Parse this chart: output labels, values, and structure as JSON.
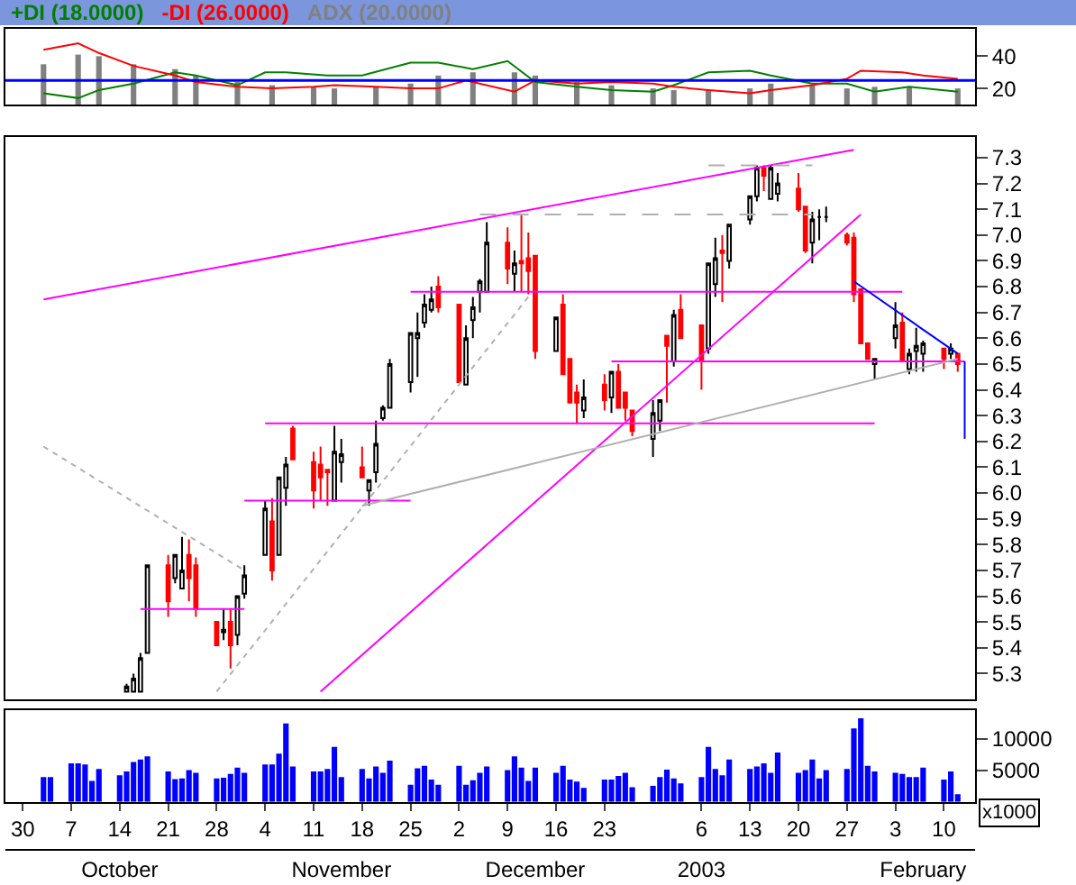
{
  "chart_data": [
    {
      "type": "line",
      "xlim": [
        "2002-09-27T12:00",
        "2003-02-14T12:00"
      ],
      "ylim": [
        10,
        57
      ],
      "yticks": [
        20,
        40
      ],
      "tick_labels": "y",
      "ref_lines": [
        {
          "axis": "y",
          "value": 25,
          "color": "#0000ff"
        }
      ],
      "series": [
        {
          "name": "+DI (18.0000)",
          "type": "line",
          "color": "#008000",
          "x": [
            "2002-10-03",
            "2002-10-08",
            "2002-10-11",
            "2002-10-16",
            "2002-10-22",
            "2002-10-25",
            "2002-10-31",
            "2002-11-04",
            "2002-11-07",
            "2002-11-13",
            "2002-11-18",
            "2002-11-25",
            "2002-11-29",
            "2002-12-04",
            "2002-12-09",
            "2002-12-13",
            "2002-12-19",
            "2002-12-24",
            "2002-12-30",
            "2003-01-02",
            "2003-01-07",
            "2003-01-13",
            "2003-01-16",
            "2003-01-22",
            "2003-01-27",
            "2003-01-31",
            "2003-02-05",
            "2003-02-12"
          ],
          "values": [
            17,
            14,
            19,
            23,
            30,
            28,
            22,
            30,
            30,
            28,
            28,
            36,
            36,
            32,
            37,
            24,
            21,
            19,
            18,
            22,
            30,
            31,
            28,
            23,
            23,
            18,
            21,
            18
          ]
        },
        {
          "name": "-DI (26.0000)",
          "type": "line",
          "color": "#ff0000",
          "x": [
            "2002-10-03",
            "2002-10-08",
            "2002-10-11",
            "2002-10-16",
            "2002-10-22",
            "2002-10-25",
            "2002-10-31",
            "2002-11-05",
            "2002-11-11",
            "2002-11-14",
            "2002-11-20",
            "2002-11-25",
            "2002-11-29",
            "2002-12-03",
            "2002-12-10",
            "2002-12-13",
            "2002-12-19",
            "2002-12-24",
            "2002-12-30",
            "2003-01-02",
            "2003-01-07",
            "2003-01-13",
            "2003-01-16",
            "2003-01-22",
            "2003-01-27",
            "2003-01-29",
            "2003-02-04",
            "2003-02-07",
            "2003-02-12"
          ],
          "values": [
            44,
            48,
            42,
            34,
            28,
            24,
            21,
            20,
            21,
            22,
            21,
            20,
            20,
            25,
            18,
            25,
            23,
            24,
            23,
            21,
            19,
            17,
            19,
            22,
            26,
            31,
            30,
            28,
            26
          ]
        },
        {
          "name": "ADX (20.0000)",
          "type": "bar",
          "color": "#808080",
          "x": [
            "2002-10-03",
            "2002-10-08",
            "2002-10-11",
            "2002-10-16",
            "2002-10-22",
            "2002-10-25",
            "2002-10-31",
            "2002-11-05",
            "2002-11-11",
            "2002-11-14",
            "2002-11-20",
            "2002-11-25",
            "2002-11-29",
            "2002-12-04",
            "2002-12-10",
            "2002-12-13",
            "2002-12-19",
            "2002-12-24",
            "2002-12-30",
            "2003-01-02",
            "2003-01-07",
            "2003-01-13",
            "2003-01-16",
            "2003-01-22",
            "2003-01-27",
            "2003-01-31",
            "2003-02-05",
            "2003-02-12"
          ],
          "values": [
            35,
            41,
            40,
            35,
            32,
            28,
            24,
            22,
            21,
            20,
            21,
            23,
            28,
            30,
            30,
            28,
            24,
            22,
            20,
            19,
            19,
            20,
            23,
            22,
            20,
            21,
            21,
            20
          ]
        }
      ]
    },
    {
      "type": "candlestick",
      "xlim": [
        "2002-09-27T12:00",
        "2003-02-14T12:00"
      ],
      "ylim": [
        5.2,
        7.38
      ],
      "tick_labels": "y",
      "yticks": [
        5.3,
        5.4,
        5.5,
        5.6,
        5.7,
        5.8,
        5.9,
        {
          "value": 6,
          "label": "6.0"
        },
        6.1,
        6.2,
        6.3,
        6.4,
        6.5,
        6.6,
        6.7,
        6.8,
        6.9,
        {
          "value": 7,
          "label": "7.0"
        },
        7.1,
        7.2,
        7.3
      ],
      "x": [
        "2002-10-15",
        "2002-10-16",
        "2002-10-17",
        "2002-10-18",
        "2002-10-21",
        "2002-10-22",
        "2002-10-23",
        "2002-10-24",
        "2002-10-25",
        "2002-10-28",
        "2002-10-29",
        "2002-10-30",
        "2002-10-31",
        "2002-11-01",
        "2002-11-04",
        "2002-11-05",
        "2002-11-06",
        "2002-11-07",
        "2002-11-08",
        "2002-11-11",
        "2002-11-12",
        "2002-11-13",
        "2002-11-14",
        "2002-11-15",
        "2002-11-18",
        "2002-11-19",
        "2002-11-20",
        "2002-11-21",
        "2002-11-22",
        "2002-11-25",
        "2002-11-26",
        "2002-11-27",
        "2002-11-28",
        "2002-11-29",
        "2002-12-02",
        "2002-12-03",
        "2002-12-04",
        "2002-12-05",
        "2002-12-06",
        "2002-12-09",
        "2002-12-10",
        "2002-12-11",
        "2002-12-12",
        "2002-12-13",
        "2002-12-16",
        "2002-12-17",
        "2002-12-18",
        "2002-12-19",
        "2002-12-20",
        "2002-12-23",
        "2002-12-24",
        "2002-12-25",
        "2002-12-26",
        "2002-12-27",
        "2002-12-30",
        "2002-12-31",
        "2003-01-01",
        "2003-01-02",
        "2003-01-03",
        "2003-01-06",
        "2003-01-07",
        "2003-01-08",
        "2003-01-09",
        "2003-01-10",
        "2003-01-13",
        "2003-01-14",
        "2003-01-15",
        "2003-01-16",
        "2003-01-17",
        "2003-01-20",
        "2003-01-21",
        "2003-01-22",
        "2003-01-23",
        "2003-01-24",
        "2003-01-27",
        "2003-01-28",
        "2003-01-29",
        "2003-01-30",
        "2003-01-31",
        "2003-02-03",
        "2003-02-04",
        "2003-02-05",
        "2003-02-06",
        "2003-02-07",
        "2003-02-10",
        "2003-02-11",
        "2003-02-12"
      ],
      "ohlc": [
        [
          5.23,
          5.26,
          5.23,
          5.25
        ],
        [
          5.23,
          5.3,
          5.23,
          5.28
        ],
        [
          5.23,
          5.38,
          5.23,
          5.36
        ],
        [
          5.38,
          5.72,
          5.38,
          5.72
        ],
        [
          5.72,
          5.76,
          5.52,
          5.58
        ],
        [
          5.67,
          5.76,
          5.65,
          5.76
        ],
        [
          5.63,
          5.83,
          5.63,
          5.7
        ],
        [
          5.76,
          5.82,
          5.58,
          5.67
        ],
        [
          5.72,
          5.75,
          5.52,
          5.55
        ],
        [
          5.5,
          5.5,
          5.41,
          5.41
        ],
        [
          5.46,
          5.55,
          5.43,
          5.47
        ],
        [
          5.5,
          5.55,
          5.32,
          5.41
        ],
        [
          5.45,
          5.6,
          5.41,
          5.6
        ],
        [
          5.61,
          5.72,
          5.59,
          5.68
        ],
        [
          5.76,
          5.97,
          5.76,
          5.94
        ],
        [
          5.89,
          5.98,
          5.66,
          5.7
        ],
        [
          5.76,
          6.06,
          5.76,
          6.06
        ],
        [
          6.02,
          6.14,
          5.95,
          6.11
        ],
        [
          6.25,
          6.26,
          6.13,
          6.13
        ],
        [
          6.12,
          6.16,
          5.94,
          6.01
        ],
        [
          6.11,
          6.18,
          5.97,
          6.06
        ],
        [
          6.09,
          6.09,
          5.95,
          6.08
        ],
        [
          5.97,
          6.26,
          5.97,
          6.16
        ],
        [
          6.12,
          6.21,
          6.04,
          6.15
        ],
        [
          6.1,
          6.18,
          6.06,
          6.06
        ],
        [
          6.01,
          6.05,
          5.95,
          6.05
        ],
        [
          6.08,
          6.28,
          6.04,
          6.19
        ],
        [
          6.29,
          6.34,
          6.28,
          6.33
        ],
        [
          6.33,
          6.52,
          6.33,
          6.5
        ],
        [
          6.43,
          6.62,
          6.39,
          6.62
        ],
        [
          6.6,
          6.7,
          6.45,
          6.62
        ],
        [
          6.66,
          6.77,
          6.64,
          6.73
        ],
        [
          6.71,
          6.8,
          6.7,
          6.75
        ],
        [
          6.8,
          6.84,
          6.7,
          6.72
        ],
        [
          6.73,
          6.73,
          6.43,
          6.43
        ],
        [
          6.42,
          6.65,
          6.42,
          6.6
        ],
        [
          6.67,
          6.76,
          6.6,
          6.72
        ],
        [
          6.78,
          6.83,
          6.7,
          6.82
        ],
        [
          6.78,
          7.05,
          6.78,
          6.97
        ],
        [
          6.97,
          7.03,
          6.81,
          6.87
        ],
        [
          6.85,
          6.94,
          6.78,
          6.89
        ],
        [
          6.9,
          7.08,
          6.78,
          6.89
        ],
        [
          6.91,
          7.01,
          6.77,
          6.86
        ],
        [
          6.92,
          6.92,
          6.52,
          6.55
        ],
        [
          6.55,
          6.68,
          6.55,
          6.68
        ],
        [
          6.73,
          6.77,
          6.46,
          6.46
        ],
        [
          6.52,
          6.52,
          6.35,
          6.35
        ],
        [
          6.39,
          6.42,
          6.27,
          6.35
        ],
        [
          6.32,
          6.44,
          6.29,
          6.37
        ],
        [
          6.42,
          6.46,
          6.32,
          6.36
        ],
        [
          6.37,
          6.47,
          6.31,
          6.47
        ],
        [
          6.47,
          6.5,
          6.33,
          6.33
        ],
        [
          6.39,
          6.39,
          6.28,
          6.33
        ],
        [
          6.32,
          6.32,
          6.22,
          6.24
        ],
        [
          6.21,
          6.36,
          6.14,
          6.31
        ],
        [
          6.28,
          6.36,
          6.24,
          6.36
        ],
        [
          6.61,
          6.61,
          6.35,
          6.57
        ],
        [
          6.51,
          6.71,
          6.49,
          6.69
        ],
        [
          6.71,
          6.77,
          6.6,
          6.6
        ],
        [
          6.65,
          6.65,
          6.4,
          6.51
        ],
        [
          6.56,
          6.89,
          6.54,
          6.89
        ],
        [
          6.81,
          6.99,
          6.76,
          6.91
        ],
        [
          6.94,
          7.0,
          6.74,
          6.93
        ],
        [
          6.9,
          7.04,
          6.87,
          7.04
        ],
        [
          7.06,
          7.15,
          7.04,
          7.15
        ],
        [
          7.15,
          7.27,
          7.13,
          7.26
        ],
        [
          7.26,
          7.27,
          7.17,
          7.23
        ],
        [
          7.14,
          7.27,
          7.14,
          7.26
        ],
        [
          7.16,
          7.24,
          7.13,
          7.2
        ],
        [
          7.18,
          7.24,
          7.09,
          7.1
        ],
        [
          7.11,
          7.11,
          6.93,
          6.94
        ],
        [
          6.97,
          7.09,
          6.89,
          7.06
        ],
        [
          7.07,
          7.1,
          6.98,
          7.07
        ],
        [
          7.07,
          7.11,
          7.05,
          7.07
        ],
        [
          7.0,
          7.01,
          6.96,
          6.97
        ],
        [
          6.99,
          7.01,
          6.74,
          6.77
        ],
        [
          6.79,
          6.79,
          6.58,
          6.58
        ],
        [
          6.58,
          6.58,
          6.52,
          6.52
        ],
        [
          6.5,
          6.52,
          6.44,
          6.52
        ],
        [
          6.6,
          6.74,
          6.56,
          6.65
        ],
        [
          6.66,
          6.7,
          6.51,
          6.51
        ],
        [
          6.48,
          6.56,
          6.46,
          6.54
        ],
        [
          6.55,
          6.64,
          6.47,
          6.57
        ],
        [
          6.54,
          6.59,
          6.47,
          6.58
        ],
        [
          6.56,
          6.56,
          6.48,
          6.52
        ],
        [
          6.54,
          6.58,
          6.52,
          6.56
        ],
        [
          6.54,
          6.54,
          6.47,
          6.5
        ]
      ],
      "series": [
        {
          "type": "line",
          "color": "#ff00ff",
          "x": [
            "2002-10-03",
            "2003-01-28"
          ],
          "values": [
            6.75,
            7.33
          ]
        },
        {
          "type": "line",
          "color": "#ff00ff",
          "x": [
            "2002-11-12",
            "2003-01-29"
          ],
          "values": [
            5.23,
            7.08
          ]
        },
        {
          "type": "line",
          "color": "#ff00ff",
          "x": [
            "2002-10-17",
            "2002-11-01"
          ],
          "values": [
            5.55,
            5.55
          ]
        },
        {
          "type": "line",
          "color": "#ff00ff",
          "x": [
            "2002-11-01",
            "2002-11-25"
          ],
          "values": [
            5.97,
            5.97
          ]
        },
        {
          "type": "line",
          "color": "#ff00ff",
          "x": [
            "2002-11-04",
            "2003-01-31"
          ],
          "values": [
            6.27,
            6.27
          ]
        },
        {
          "type": "line",
          "color": "#ff00ff",
          "x": [
            "2002-11-25",
            "2003-02-04"
          ],
          "values": [
            6.78,
            6.78
          ]
        },
        {
          "type": "line",
          "color": "#ff00ff",
          "x": [
            "2002-12-24",
            "2003-02-13"
          ],
          "values": [
            6.51,
            6.51
          ]
        },
        {
          "type": "line",
          "color": "#b0b0b0",
          "line_style": "dashed",
          "x": [
            "2002-12-05",
            "2003-01-22"
          ],
          "values": [
            7.08,
            7.08
          ]
        },
        {
          "type": "line",
          "color": "#b0b0b0",
          "line_style": "dashed",
          "x": [
            "2003-01-07",
            "2003-01-22"
          ],
          "values": [
            7.27,
            7.27
          ]
        },
        {
          "type": "line",
          "color": "#b0b0b0",
          "line_style": "dotted",
          "x": [
            "2002-10-03",
            "2002-11-01"
          ],
          "values": [
            6.18,
            5.7
          ]
        },
        {
          "type": "line",
          "color": "#b0b0b0",
          "line_style": "dotted",
          "x": [
            "2002-10-28",
            "2002-12-12"
          ],
          "values": [
            5.23,
            6.76
          ]
        },
        {
          "type": "line",
          "color": "#b0b0b0",
          "x": [
            "2002-11-18",
            "2003-02-12"
          ],
          "values": [
            5.95,
            6.52
          ]
        },
        {
          "type": "line",
          "color": "#0000ff",
          "x": [
            "2003-01-28",
            "2003-02-12"
          ],
          "values": [
            6.82,
            6.54
          ]
        },
        {
          "type": "line",
          "color": "#0000ff",
          "x": [
            "2003-02-13",
            "2003-02-13"
          ],
          "values": [
            6.51,
            6.21
          ]
        }
      ]
    },
    {
      "type": "bar",
      "color": "#0000ff",
      "xlim": [
        "2002-09-27T12:00",
        "2003-02-14T12:00"
      ],
      "ylim": [
        0,
        14500
      ],
      "yticks": [
        5000,
        10000
      ],
      "annotations": [
        "x1000"
      ],
      "xticks": [
        {
          "value": "2002-09-30",
          "label": "30"
        },
        {
          "value": "2002-10-07",
          "label": "7"
        },
        {
          "value": "2002-10-14",
          "label": "14"
        },
        {
          "value": "2002-10-21",
          "label": "21"
        },
        {
          "value": "2002-10-28",
          "label": "28"
        },
        {
          "value": "2002-11-04",
          "label": "4"
        },
        {
          "value": "2002-11-11",
          "label": "11"
        },
        {
          "value": "2002-11-18",
          "label": "18"
        },
        {
          "value": "2002-11-25",
          "label": "25"
        },
        {
          "value": "2002-12-02",
          "label": "2"
        },
        {
          "value": "2002-12-09",
          "label": "9"
        },
        {
          "value": "2002-12-16",
          "label": "16"
        },
        {
          "value": "2002-12-23",
          "label": "23"
        },
        {
          "value": "2003-01-06",
          "label": "6"
        },
        {
          "value": "2003-01-13",
          "label": "13"
        },
        {
          "value": "2003-01-20",
          "label": "20"
        },
        {
          "value": "2003-01-27",
          "label": "27"
        },
        {
          "value": "2003-02-03",
          "label": "3"
        },
        {
          "value": "2003-02-10",
          "label": "10"
        }
      ],
      "x2lim": [
        "2002-09-27T12:00",
        "2003-02-14T12:00"
      ],
      "x2ticks": [
        {
          "value": "2002-10-14",
          "label": "October"
        },
        {
          "value": "2002-11-15",
          "label": "November"
        },
        {
          "value": "2002-12-13",
          "label": "December"
        },
        {
          "value": "2003-01-06",
          "label": "2003"
        },
        {
          "value": "2003-02-07",
          "label": "February"
        }
      ],
      "x": [
        "2002-10-03",
        "2002-10-04",
        "2002-10-07",
        "2002-10-08",
        "2002-10-09",
        "2002-10-10",
        "2002-10-11",
        "2002-10-14",
        "2002-10-15",
        "2002-10-16",
        "2002-10-17",
        "2002-10-18",
        "2002-10-21",
        "2002-10-22",
        "2002-10-23",
        "2002-10-24",
        "2002-10-25",
        "2002-10-28",
        "2002-10-29",
        "2002-10-30",
        "2002-10-31",
        "2002-11-01",
        "2002-11-04",
        "2002-11-05",
        "2002-11-06",
        "2002-11-07",
        "2002-11-08",
        "2002-11-11",
        "2002-11-12",
        "2002-11-13",
        "2002-11-14",
        "2002-11-15",
        "2002-11-18",
        "2002-11-19",
        "2002-11-20",
        "2002-11-21",
        "2002-11-22",
        "2002-11-25",
        "2002-11-26",
        "2002-11-27",
        "2002-11-28",
        "2002-11-29",
        "2002-12-02",
        "2002-12-03",
        "2002-12-04",
        "2002-12-05",
        "2002-12-06",
        "2002-12-09",
        "2002-12-10",
        "2002-12-11",
        "2002-12-12",
        "2002-12-13",
        "2002-12-16",
        "2002-12-17",
        "2002-12-18",
        "2002-12-19",
        "2002-12-20",
        "2002-12-23",
        "2002-12-24",
        "2002-12-25",
        "2002-12-26",
        "2002-12-27",
        "2002-12-30",
        "2002-12-31",
        "2003-01-01",
        "2003-01-02",
        "2003-01-03",
        "2003-01-06",
        "2003-01-07",
        "2003-01-08",
        "2003-01-09",
        "2003-01-10",
        "2003-01-13",
        "2003-01-14",
        "2003-01-15",
        "2003-01-16",
        "2003-01-17",
        "2003-01-20",
        "2003-01-21",
        "2003-01-22",
        "2003-01-23",
        "2003-01-24",
        "2003-01-27",
        "2003-01-28",
        "2003-01-29",
        "2003-01-30",
        "2003-01-31",
        "2003-02-03",
        "2003-02-04",
        "2003-02-05",
        "2003-02-06",
        "2003-02-07",
        "2003-02-10",
        "2003-02-11",
        "2003-02-12"
      ],
      "values": [
        3900,
        3900,
        6100,
        6100,
        5900,
        3300,
        5200,
        4200,
        4800,
        6300,
        6700,
        7200,
        4800,
        3600,
        3700,
        5000,
        4600,
        3700,
        3800,
        4400,
        5400,
        4600,
        5900,
        5900,
        7600,
        12400,
        5600,
        4800,
        4800,
        5200,
        8700,
        3900,
        5200,
        3700,
        5600,
        4600,
        6500,
        2700,
        5300,
        5700,
        3500,
        2700,
        5700,
        2700,
        3400,
        4600,
        5600,
        5000,
        7200,
        5400,
        3300,
        5400,
        4600,
        5700,
        3500,
        3200,
        2200,
        3500,
        3500,
        4100,
        4600,
        2300,
        2500,
        3900,
        5100,
        3700,
        2900,
        3900,
        8700,
        5200,
        4200,
        6700,
        5200,
        5600,
        6100,
        4600,
        7800,
        4600,
        5000,
        6700,
        3700,
        5000,
        5200,
        11600,
        13200,
        5700,
        4800,
        4600,
        4400,
        3900,
        3900,
        5400,
        3500,
        4800,
        1200
      ]
    }
  ]
}
